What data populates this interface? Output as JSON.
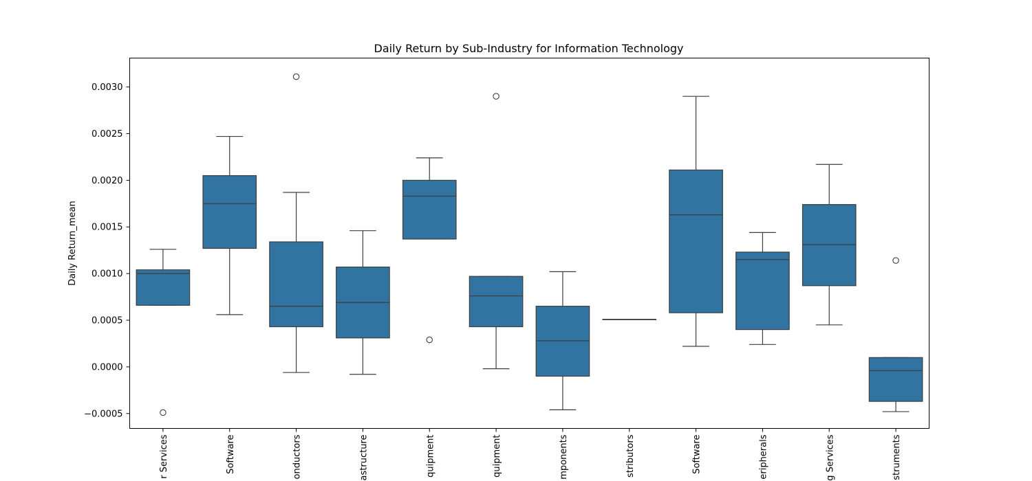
{
  "chart_data": {
    "type": "box",
    "title": "Daily Return by Sub-Industry for Information Technology",
    "xlabel": "",
    "ylabel": "Daily Return_mean",
    "ylim": [
      -0.00066,
      0.00331
    ],
    "yticks": [
      -0.0005,
      0.0,
      0.0005,
      0.001,
      0.0015,
      0.002,
      0.0025,
      0.003
    ],
    "ytick_labels": [
      "−0.0005",
      "0.0000",
      "0.0005",
      "0.0010",
      "0.0015",
      "0.0020",
      "0.0025",
      "0.0030"
    ],
    "grid": false,
    "box_color": "#3274a1",
    "categories": [
      "r Services",
      "Software",
      "onductors",
      "astructure",
      "quipment",
      "quipment",
      "mponents",
      "stributors",
      "Software",
      "eripherals",
      "g Services",
      "struments"
    ],
    "boxes": [
      {
        "whisker_low": 0.00066,
        "q1": 0.00066,
        "median": 0.001,
        "q3": 0.00104,
        "whisker_high": 0.00126,
        "outliers": [
          -0.00049
        ]
      },
      {
        "whisker_low": 0.00056,
        "q1": 0.00127,
        "median": 0.00175,
        "q3": 0.00205,
        "whisker_high": 0.00247,
        "outliers": []
      },
      {
        "whisker_low": -6e-05,
        "q1": 0.00043,
        "median": 0.00065,
        "q3": 0.00134,
        "whisker_high": 0.00187,
        "outliers": [
          0.00311
        ]
      },
      {
        "whisker_low": -8e-05,
        "q1": 0.00031,
        "median": 0.00069,
        "q3": 0.00107,
        "whisker_high": 0.00146,
        "outliers": []
      },
      {
        "whisker_low": 0.00137,
        "q1": 0.00137,
        "median": 0.00183,
        "q3": 0.002,
        "whisker_high": 0.00224,
        "outliers": [
          0.00029
        ]
      },
      {
        "whisker_low": -2e-05,
        "q1": 0.00043,
        "median": 0.00076,
        "q3": 0.00097,
        "whisker_high": 0.00097,
        "outliers": [
          0.0029
        ]
      },
      {
        "whisker_low": -0.00046,
        "q1": -0.0001,
        "median": 0.00028,
        "q3": 0.00065,
        "whisker_high": 0.00102,
        "outliers": []
      },
      {
        "whisker_low": 0.00051,
        "q1": 0.00051,
        "median": 0.00051,
        "q3": 0.00051,
        "whisker_high": 0.00051,
        "outliers": []
      },
      {
        "whisker_low": 0.00022,
        "q1": 0.00058,
        "median": 0.00163,
        "q3": 0.00211,
        "whisker_high": 0.0029,
        "outliers": []
      },
      {
        "whisker_low": 0.00024,
        "q1": 0.0004,
        "median": 0.00115,
        "q3": 0.00123,
        "whisker_high": 0.00144,
        "outliers": []
      },
      {
        "whisker_low": 0.00045,
        "q1": 0.00087,
        "median": 0.00131,
        "q3": 0.00174,
        "whisker_high": 0.00217,
        "outliers": []
      },
      {
        "whisker_low": -0.00048,
        "q1": -0.00037,
        "median": -4e-05,
        "q3": 0.0001,
        "whisker_high": 0.0001,
        "outliers": [
          0.00114
        ]
      }
    ]
  }
}
